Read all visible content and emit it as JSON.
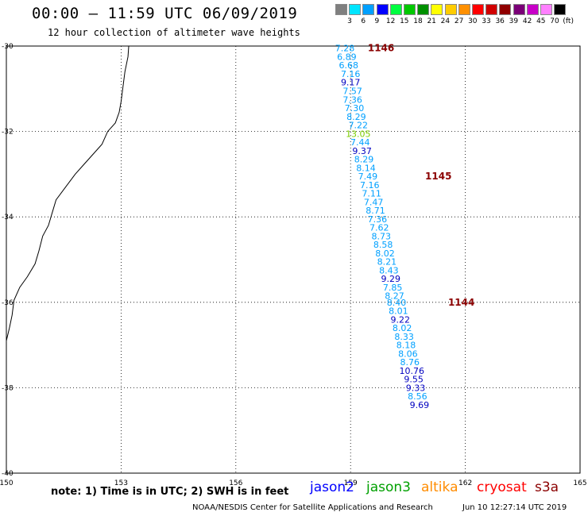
{
  "title": "00:00 – 11:59 UTC 06/09/2019",
  "subtitle": "12 hour collection of altimeter wave heights",
  "color_scale": {
    "labels": [
      "3",
      "6",
      "9",
      "12",
      "15",
      "18",
      "21",
      "24",
      "27",
      "30",
      "33",
      "36",
      "39",
      "42",
      "45",
      "70",
      "(ft)"
    ],
    "colors": [
      "#7f7f7f",
      "#00e5ff",
      "#00a0ff",
      "#0000ff",
      "#00ff40",
      "#00c800",
      "#009000",
      "#ffff00",
      "#ffcc00",
      "#ff9000",
      "#ff0000",
      "#d00000",
      "#900000",
      "#7a0077",
      "#c800c8",
      "#ff80ff",
      "#000000"
    ]
  },
  "axes": {
    "lon_labels": [
      "150",
      "153",
      "156",
      "159",
      "162",
      "165"
    ],
    "lat_labels": [
      "-30",
      "-32",
      "-34",
      "-36",
      "-38",
      "-40"
    ]
  },
  "pass_labels": [
    "1146",
    "1145",
    "1144"
  ],
  "wave_heights": [
    {
      "v": "7.28",
      "lat": -30.05,
      "lon": 158.85,
      "c": "#00a0ff"
    },
    {
      "v": "6.89",
      "lat": -30.25,
      "lon": 158.9,
      "c": "#00a0ff"
    },
    {
      "v": "6.68",
      "lat": -30.45,
      "lon": 158.95,
      "c": "#00a0ff"
    },
    {
      "v": "7.16",
      "lat": -30.65,
      "lon": 159.0,
      "c": "#00a0ff"
    },
    {
      "v": "9.17",
      "lat": -30.85,
      "lon": 159.0,
      "c": "#0000c0"
    },
    {
      "v": "7.57",
      "lat": -31.05,
      "lon": 159.05,
      "c": "#00a0ff"
    },
    {
      "v": "7.36",
      "lat": -31.25,
      "lon": 159.05,
      "c": "#00a0ff"
    },
    {
      "v": "7.30",
      "lat": -31.45,
      "lon": 159.1,
      "c": "#00a0ff"
    },
    {
      "v": "8.29",
      "lat": -31.65,
      "lon": 159.15,
      "c": "#00a0ff"
    },
    {
      "v": "7.22",
      "lat": -31.85,
      "lon": 159.2,
      "c": "#00a0ff"
    },
    {
      "v": "13.05",
      "lat": -32.05,
      "lon": 159.2,
      "c": "#7ccd00"
    },
    {
      "v": "7.44",
      "lat": -32.25,
      "lon": 159.25,
      "c": "#00a0ff"
    },
    {
      "v": "9.37",
      "lat": -32.45,
      "lon": 159.3,
      "c": "#0000c0"
    },
    {
      "v": "8.29",
      "lat": -32.65,
      "lon": 159.35,
      "c": "#00a0ff"
    },
    {
      "v": "8.14",
      "lat": -32.85,
      "lon": 159.4,
      "c": "#00a0ff"
    },
    {
      "v": "7.49",
      "lat": -33.05,
      "lon": 159.45,
      "c": "#00a0ff"
    },
    {
      "v": "7.16",
      "lat": -33.25,
      "lon": 159.5,
      "c": "#00a0ff"
    },
    {
      "v": "7.11",
      "lat": -33.45,
      "lon": 159.55,
      "c": "#00a0ff"
    },
    {
      "v": "7.47",
      "lat": -33.65,
      "lon": 159.6,
      "c": "#00a0ff"
    },
    {
      "v": "8.71",
      "lat": -33.85,
      "lon": 159.65,
      "c": "#00a0ff"
    },
    {
      "v": "7.36",
      "lat": -34.05,
      "lon": 159.7,
      "c": "#00a0ff"
    },
    {
      "v": "7.62",
      "lat": -34.25,
      "lon": 159.75,
      "c": "#00a0ff"
    },
    {
      "v": "8.73",
      "lat": -34.45,
      "lon": 159.8,
      "c": "#00a0ff"
    },
    {
      "v": "8.58",
      "lat": -34.65,
      "lon": 159.85,
      "c": "#00a0ff"
    },
    {
      "v": "8.02",
      "lat": -34.85,
      "lon": 159.9,
      "c": "#00a0ff"
    },
    {
      "v": "8.21",
      "lat": -35.05,
      "lon": 159.95,
      "c": "#00a0ff"
    },
    {
      "v": "8.43",
      "lat": -35.25,
      "lon": 160.0,
      "c": "#00a0ff"
    },
    {
      "v": "9.29",
      "lat": -35.45,
      "lon": 160.05,
      "c": "#0000c0"
    },
    {
      "v": "7.85",
      "lat": -35.65,
      "lon": 160.1,
      "c": "#00a0ff"
    },
    {
      "v": "8.27",
      "lat": -35.85,
      "lon": 160.15,
      "c": "#00a0ff"
    },
    {
      "v": "8.40",
      "lat": -36.0,
      "lon": 160.2,
      "c": "#00a0ff"
    },
    {
      "v": "8.01",
      "lat": -36.2,
      "lon": 160.25,
      "c": "#00a0ff"
    },
    {
      "v": "9.22",
      "lat": -36.4,
      "lon": 160.3,
      "c": "#0000c0"
    },
    {
      "v": "8.02",
      "lat": -36.6,
      "lon": 160.35,
      "c": "#00a0ff"
    },
    {
      "v": "8.33",
      "lat": -36.8,
      "lon": 160.4,
      "c": "#00a0ff"
    },
    {
      "v": "8.18",
      "lat": -37.0,
      "lon": 160.45,
      "c": "#00a0ff"
    },
    {
      "v": "8.06",
      "lat": -37.2,
      "lon": 160.5,
      "c": "#00a0ff"
    },
    {
      "v": "8.76",
      "lat": -37.4,
      "lon": 160.55,
      "c": "#00a0ff"
    },
    {
      "v": "10.76",
      "lat": -37.6,
      "lon": 160.6,
      "c": "#0000c0"
    },
    {
      "v": "9.55",
      "lat": -37.8,
      "lon": 160.65,
      "c": "#0000c0"
    },
    {
      "v": "9.33",
      "lat": -38.0,
      "lon": 160.7,
      "c": "#0000c0"
    },
    {
      "v": "8.56",
      "lat": -38.2,
      "lon": 160.75,
      "c": "#00a0ff"
    },
    {
      "v": "9.69",
      "lat": -38.4,
      "lon": 160.8,
      "c": "#0000c0"
    }
  ],
  "note": "note: 1) Time is in UTC; 2) SWH is in feet",
  "satellites": [
    {
      "name": "jason2",
      "color": "#0000ff"
    },
    {
      "name": "jason3",
      "color": "#00a000"
    },
    {
      "name": "altika",
      "color": "#ff8c00"
    },
    {
      "name": "cryosat",
      "color": "#ff0000"
    },
    {
      "name": "s3a",
      "color": "#8b0000"
    }
  ],
  "credit": "NOAA/NESDIS Center for Satellite Applications and Research",
  "timestamp": "Jun 10 12:27:14 UTC 2019"
}
